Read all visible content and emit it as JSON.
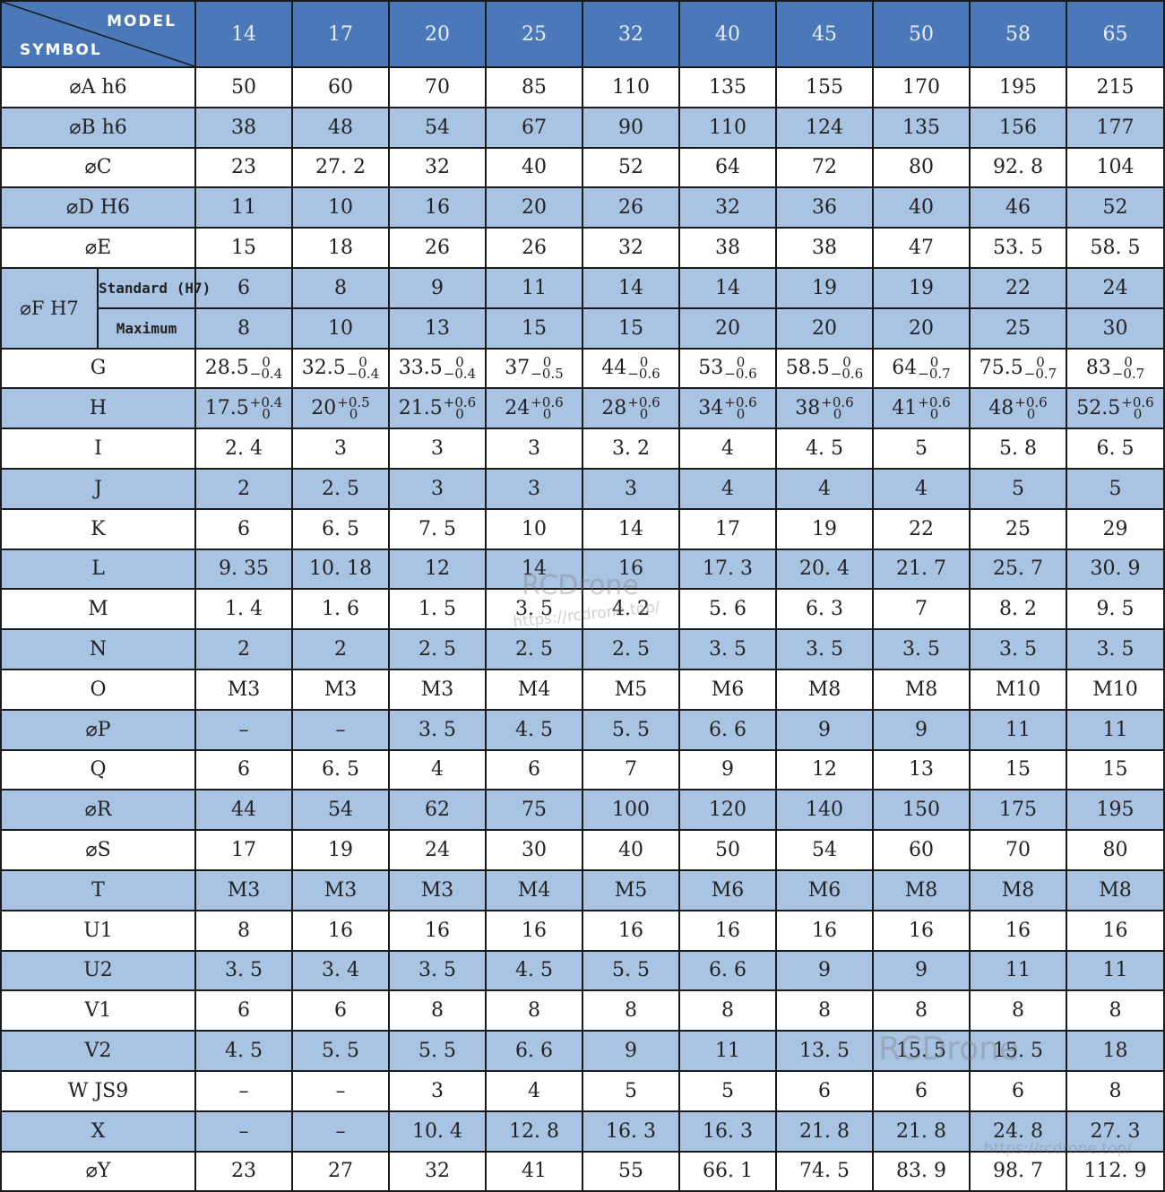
{
  "header": {
    "model_label": "MODEL",
    "symbol_label": "SYMBOL",
    "models": [
      "14",
      "17",
      "20",
      "25",
      "32",
      "40",
      "45",
      "50",
      "58",
      "65"
    ]
  },
  "f_group": {
    "label": "⌀F  H7",
    "standard_label": "Standard (H7)",
    "maximum_label": "Maximum",
    "standard_values": [
      "6",
      "8",
      "9",
      "11",
      "14",
      "14",
      "19",
      "19",
      "22",
      "24"
    ],
    "maximum_values": [
      "8",
      "10",
      "13",
      "15",
      "15",
      "20",
      "20",
      "20",
      "25",
      "30"
    ]
  },
  "rows_top": [
    {
      "symbol": "⌀A  h6",
      "shade": false,
      "values": [
        "50",
        "60",
        "70",
        "85",
        "110",
        "135",
        "155",
        "170",
        "195",
        "215"
      ]
    },
    {
      "symbol": "⌀B  h6",
      "shade": true,
      "values": [
        "38",
        "48",
        "54",
        "67",
        "90",
        "110",
        "124",
        "135",
        "156",
        "177"
      ]
    },
    {
      "symbol": "⌀C",
      "shade": false,
      "values": [
        "23",
        "27. 2",
        "32",
        "40",
        "52",
        "64",
        "72",
        "80",
        "92. 8",
        "104"
      ]
    },
    {
      "symbol": "⌀D  H6",
      "shade": true,
      "values": [
        "11",
        "10",
        "16",
        "20",
        "26",
        "32",
        "36",
        "40",
        "46",
        "52"
      ]
    },
    {
      "symbol": "⌀E",
      "shade": false,
      "values": [
        "15",
        "18",
        "26",
        "26",
        "32",
        "38",
        "38",
        "47",
        "53. 5",
        "58. 5"
      ]
    }
  ],
  "row_g": {
    "symbol": "G",
    "values": [
      {
        "base": "28.5",
        "upper": "0",
        "lower": "−0.4"
      },
      {
        "base": "32.5",
        "upper": "0",
        "lower": "−0.4"
      },
      {
        "base": "33.5",
        "upper": "0",
        "lower": "−0.4"
      },
      {
        "base": "37",
        "upper": "0",
        "lower": "−0.5"
      },
      {
        "base": "44",
        "upper": "0",
        "lower": "−0.6"
      },
      {
        "base": "53",
        "upper": "0",
        "lower": "−0.6"
      },
      {
        "base": "58.5",
        "upper": "0",
        "lower": "−0.6"
      },
      {
        "base": "64",
        "upper": "0",
        "lower": "−0.7"
      },
      {
        "base": "75.5",
        "upper": "0",
        "lower": "−0.7"
      },
      {
        "base": "83",
        "upper": "0",
        "lower": "−0.7"
      }
    ]
  },
  "row_h": {
    "symbol": "H",
    "values": [
      {
        "base": "17.5",
        "upper": "+0.4",
        "lower": "0"
      },
      {
        "base": "20",
        "upper": "+0.5",
        "lower": "0"
      },
      {
        "base": "21.5",
        "upper": "+0.6",
        "lower": "0"
      },
      {
        "base": "24",
        "upper": "+0.6",
        "lower": "0"
      },
      {
        "base": "28",
        "upper": "+0.6",
        "lower": "0"
      },
      {
        "base": "34",
        "upper": "+0.6",
        "lower": "0"
      },
      {
        "base": "38",
        "upper": "+0.6",
        "lower": "0"
      },
      {
        "base": "41",
        "upper": "+0.6",
        "lower": "0"
      },
      {
        "base": "48",
        "upper": "+0.6",
        "lower": "0"
      },
      {
        "base": "52.5",
        "upper": "+0.6",
        "lower": "0"
      }
    ]
  },
  "rows_bottom": [
    {
      "symbol": "I",
      "shade": false,
      "values": [
        "2. 4",
        "3",
        "3",
        "3",
        "3. 2",
        "4",
        "4. 5",
        "5",
        "5. 8",
        "6. 5"
      ]
    },
    {
      "symbol": "J",
      "shade": true,
      "values": [
        "2",
        "2. 5",
        "3",
        "3",
        "3",
        "4",
        "4",
        "4",
        "5",
        "5"
      ]
    },
    {
      "symbol": "K",
      "shade": false,
      "values": [
        "6",
        "6. 5",
        "7. 5",
        "10",
        "14",
        "17",
        "19",
        "22",
        "25",
        "29"
      ]
    },
    {
      "symbol": "L",
      "shade": true,
      "values": [
        "9. 35",
        "10. 18",
        "12",
        "14",
        "16",
        "17. 3",
        "20. 4",
        "21. 7",
        "25. 7",
        "30. 9"
      ]
    },
    {
      "symbol": "M",
      "shade": false,
      "values": [
        "1. 4",
        "1. 6",
        "1. 5",
        "3. 5",
        "4. 2",
        "5. 6",
        "6. 3",
        "7",
        "8. 2",
        "9. 5"
      ]
    },
    {
      "symbol": "N",
      "shade": true,
      "values": [
        "2",
        "2",
        "2. 5",
        "2. 5",
        "2. 5",
        "3. 5",
        "3. 5",
        "3. 5",
        "3. 5",
        "3. 5"
      ]
    },
    {
      "symbol": "O",
      "shade": false,
      "values": [
        "M3",
        "M3",
        "M3",
        "M4",
        "M5",
        "M6",
        "M8",
        "M8",
        "M10",
        "M10"
      ]
    },
    {
      "symbol": "⌀P",
      "shade": true,
      "values": [
        "–",
        "–",
        "3. 5",
        "4. 5",
        "5. 5",
        "6. 6",
        "9",
        "9",
        "11",
        "11"
      ]
    },
    {
      "symbol": "Q",
      "shade": false,
      "values": [
        "6",
        "6. 5",
        "4",
        "6",
        "7",
        "9",
        "12",
        "13",
        "15",
        "15"
      ]
    },
    {
      "symbol": "⌀R",
      "shade": true,
      "values": [
        "44",
        "54",
        "62",
        "75",
        "100",
        "120",
        "140",
        "150",
        "175",
        "195"
      ]
    },
    {
      "symbol": "⌀S",
      "shade": false,
      "values": [
        "17",
        "19",
        "24",
        "30",
        "40",
        "50",
        "54",
        "60",
        "70",
        "80"
      ]
    },
    {
      "symbol": "T",
      "shade": true,
      "values": [
        "M3",
        "M3",
        "M3",
        "M4",
        "M5",
        "M6",
        "M6",
        "M8",
        "M8",
        "M8"
      ]
    },
    {
      "symbol": "U1",
      "shade": false,
      "values": [
        "8",
        "16",
        "16",
        "16",
        "16",
        "16",
        "16",
        "16",
        "16",
        "16"
      ]
    },
    {
      "symbol": "U2",
      "shade": true,
      "values": [
        "3. 5",
        "3. 4",
        "3. 5",
        "4. 5",
        "5. 5",
        "6. 6",
        "9",
        "9",
        "11",
        "11"
      ]
    },
    {
      "symbol": "V1",
      "shade": false,
      "values": [
        "6",
        "6",
        "8",
        "8",
        "8",
        "8",
        "8",
        "8",
        "8",
        "8"
      ]
    },
    {
      "symbol": "V2",
      "shade": true,
      "values": [
        "4. 5",
        "5. 5",
        "5. 5",
        "6. 6",
        "9",
        "11",
        "13. 5",
        "15. 5",
        "15. 5",
        "18"
      ]
    },
    {
      "symbol": "W  JS9",
      "shade": false,
      "values": [
        "–",
        "–",
        "3",
        "4",
        "5",
        "5",
        "6",
        "6",
        "6",
        "8"
      ]
    },
    {
      "symbol": "X",
      "shade": true,
      "values": [
        "–",
        "–",
        "10. 4",
        "12. 8",
        "16. 3",
        "16. 3",
        "21. 8",
        "21. 8",
        "24. 8",
        "27. 3"
      ]
    },
    {
      "symbol": "⌀Y",
      "shade": false,
      "values": [
        "23",
        "27",
        "32",
        "41",
        "55",
        "66. 1",
        "74. 5",
        "83. 9",
        "98. 7",
        "112. 9"
      ]
    }
  ],
  "watermarks": [
    {
      "text": "RCDrone",
      "url": "https://rcdrone.top/"
    },
    {
      "text": "RCDrone",
      "url": ""
    },
    {
      "text": "",
      "url": "https://rcdrone.top/"
    }
  ]
}
